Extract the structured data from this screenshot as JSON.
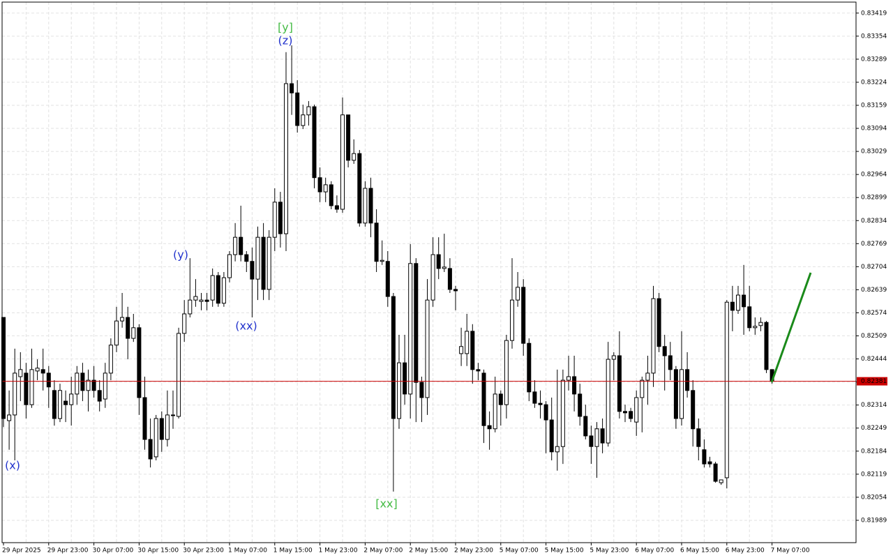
{
  "chart_data": {
    "type": "candlestick",
    "categories": [
      "29 Apr 2025",
      null,
      null,
      null,
      null,
      null,
      null,
      null,
      "29 Apr 23:00",
      null,
      null,
      null,
      null,
      null,
      null,
      null,
      "30 Apr 07:00",
      null,
      null,
      null,
      null,
      null,
      null,
      null,
      "30 Apr 15:00",
      null,
      null,
      null,
      null,
      null,
      null,
      null,
      "30 Apr 23:00",
      null,
      null,
      null,
      null,
      null,
      null,
      null,
      "1 May 07:00",
      null,
      null,
      null,
      null,
      null,
      null,
      null,
      "1 May 15:00",
      null,
      null,
      null,
      null,
      null,
      null,
      null,
      "1 May 23:00",
      null,
      null,
      null,
      null,
      null,
      null,
      null,
      "2 May 07:00",
      null,
      null,
      null,
      null,
      null,
      null,
      null,
      "2 May 15:00",
      null,
      null,
      null,
      null,
      null,
      null,
      null,
      "2 May 23:00",
      null,
      null,
      null,
      null,
      null,
      null,
      null,
      "5 May 07:00",
      null,
      null,
      null,
      null,
      null,
      null,
      null,
      "5 May 15:00",
      null,
      null,
      null,
      null,
      null,
      null,
      null,
      "5 May 23:00",
      null,
      null,
      null,
      null,
      null,
      null,
      null,
      "6 May 07:00",
      null,
      null,
      null,
      null,
      null,
      null,
      null,
      "6 May 15:00",
      null,
      null,
      null,
      null,
      null,
      null,
      null,
      "6 May 23:00",
      null,
      null,
      null,
      null,
      null,
      null,
      null,
      "7 May 07:00"
    ],
    "open": [
      0.82561,
      0.8227,
      0.82286,
      0.82394,
      0.82404,
      0.82315,
      0.8241,
      0.82414,
      0.82404,
      0.82355,
      0.82276,
      0.82325,
      0.82315,
      0.82345,
      0.82404,
      0.82355,
      0.82384,
      0.82355,
      0.82331,
      0.82404,
      0.82483,
      0.82551,
      0.82561,
      0.82502,
      0.82532,
      0.82335,
      0.82217,
      0.82168,
      0.82276,
      0.82217,
      0.82286,
      0.82282,
      0.82516,
      0.82571,
      0.8261,
      0.82606,
      0.8261,
      0.8261,
      0.82679,
      0.82601,
      0.82673,
      0.82738,
      0.82787,
      0.82738,
      0.82719,
      0.82669,
      0.82787,
      0.8264,
      0.82787,
      0.82886,
      0.82797,
      0.8322,
      0.83194,
      0.83102,
      0.83132,
      0.83155,
      0.82955,
      0.82915,
      0.82935,
      0.82876,
      0.82866,
      0.83132,
      0.83004,
      0.83023,
      0.82827,
      0.82925,
      0.82827,
      0.82719,
      0.82719,
      0.8262,
      0.82276,
      0.82433,
      0.82345,
      0.82713,
      0.82378,
      0.82335,
      0.8261,
      0.82738,
      0.82699,
      0.82699,
      0.8264,
      0.82459,
      0.82459,
      0.82522,
      0.82414,
      0.82404,
      0.82256,
      0.82247,
      0.82345,
      0.82315,
      0.82496,
      0.8261,
      0.82646,
      0.82488,
      0.82351,
      0.82319,
      0.82315,
      0.82272,
      0.82182,
      0.82197,
      0.82384,
      0.82394,
      0.82345,
      0.82282,
      0.82227,
      0.82197,
      0.82247,
      0.82207,
      0.82443,
      0.82453,
      0.82296,
      0.82296,
      0.82266,
      0.82335,
      0.82384,
      0.82404,
      0.82614,
      0.82479,
      0.82453,
      0.82414,
      0.82276,
      0.82414,
      0.82355,
      0.82247,
      0.82188,
      0.82154,
      0.82148,
      0.82095,
      0.82109,
      0.82604,
      0.82581,
      0.82624,
      0.82591,
      0.82532,
      0.82538,
      0.82547,
      0.82414
    ],
    "high": [
      0.82561,
      0.82355,
      0.82473,
      0.82463,
      0.82433,
      0.82473,
      0.82443,
      0.82473,
      0.82424,
      0.82384,
      0.82374,
      0.82355,
      0.82394,
      0.82424,
      0.82433,
      0.82414,
      0.82424,
      0.82384,
      0.82433,
      0.82502,
      0.82591,
      0.8263,
      0.82591,
      0.82571,
      0.82542,
      0.82394,
      0.82276,
      0.82286,
      0.82296,
      0.82355,
      0.82355,
      0.82532,
      0.8261,
      0.82728,
      0.82669,
      0.8263,
      0.8263,
      0.82699,
      0.82689,
      0.82689,
      0.82748,
      0.82827,
      0.82876,
      0.82748,
      0.82758,
      0.82817,
      0.82827,
      0.82807,
      0.82925,
      0.82915,
      0.83309,
      0.83328,
      0.8323,
      0.83161,
      0.83171,
      0.83161,
      0.82984,
      0.82955,
      0.82945,
      0.82905,
      0.83181,
      0.83132,
      0.83063,
      0.83033,
      0.82945,
      0.82955,
      0.82866,
      0.82778,
      0.82748,
      0.8263,
      0.82512,
      0.82512,
      0.82768,
      0.82728,
      0.82394,
      0.82669,
      0.82787,
      0.82787,
      0.82797,
      0.82728,
      0.8265,
      0.82532,
      0.82571,
      0.82542,
      0.82433,
      0.82414,
      0.82296,
      0.82394,
      0.82355,
      0.82512,
      0.82728,
      0.82689,
      0.82669,
      0.82502,
      0.82384,
      0.82355,
      0.82325,
      0.82335,
      0.82414,
      0.82414,
      0.82453,
      0.82453,
      0.82374,
      0.82315,
      0.82256,
      0.82266,
      0.82276,
      0.82492,
      0.82463,
      0.82522,
      0.82315,
      0.82306,
      0.82355,
      0.82394,
      0.82453,
      0.8265,
      0.8263,
      0.82512,
      0.82492,
      0.82424,
      0.82522,
      0.82463,
      0.82384,
      0.82276,
      0.82217,
      0.82168,
      0.82154,
      0.82103,
      0.8261,
      0.8265,
      0.8265,
      0.82709,
      0.8265,
      0.82561,
      0.82561,
      0.82551,
      0.82414
    ],
    "low": [
      0.82252,
      0.82188,
      0.82158,
      0.82325,
      0.82276,
      0.82306,
      0.82384,
      0.82355,
      0.82306,
      0.82256,
      0.82266,
      0.82266,
      0.82256,
      0.82315,
      0.82325,
      0.82296,
      0.82335,
      0.82296,
      0.82306,
      0.82384,
      0.82463,
      0.82532,
      0.82443,
      0.82492,
      0.82286,
      0.82188,
      0.82138,
      0.82158,
      0.82182,
      0.82197,
      0.82247,
      0.82276,
      0.82492,
      0.82561,
      0.82591,
      0.82581,
      0.82581,
      0.82591,
      0.82591,
      0.82591,
      0.8266,
      0.82719,
      0.82719,
      0.82689,
      0.82561,
      0.8261,
      0.8261,
      0.8261,
      0.82748,
      0.82758,
      0.82748,
      0.83132,
      0.83082,
      0.83092,
      0.83102,
      0.82925,
      0.82886,
      0.82886,
      0.82866,
      0.82856,
      0.82856,
      0.82984,
      0.82994,
      0.82817,
      0.82817,
      0.82787,
      0.82689,
      0.82709,
      0.82591,
      0.8207,
      0.82247,
      0.82315,
      0.82276,
      0.82266,
      0.82266,
      0.82286,
      0.82591,
      0.82669,
      0.82689,
      0.8263,
      0.82581,
      0.82424,
      0.82424,
      0.82374,
      0.82384,
      0.82207,
      0.82188,
      0.82237,
      0.82256,
      0.82276,
      0.82473,
      0.82591,
      0.82453,
      0.82325,
      0.82306,
      0.82276,
      0.82178,
      0.82158,
      0.82129,
      0.82148,
      0.82355,
      0.82296,
      0.82256,
      0.82217,
      0.82148,
      0.82109,
      0.82178,
      0.82197,
      0.82384,
      0.82276,
      0.82266,
      0.82266,
      0.82227,
      0.82237,
      0.82315,
      0.82365,
      0.82463,
      0.82355,
      0.82384,
      0.82247,
      0.82256,
      0.82335,
      0.82197,
      0.82158,
      0.82138,
      0.82138,
      0.82095,
      0.82089,
      0.82079,
      0.82522,
      0.82571,
      0.82512,
      0.82522,
      0.82512,
      0.82522,
      0.82404,
      0.82374
    ],
    "close": [
      0.82276,
      0.82286,
      0.82404,
      0.82414,
      0.82315,
      0.82414,
      0.82418,
      0.82404,
      0.82365,
      0.82276,
      0.82355,
      0.82315,
      0.82345,
      0.82404,
      0.82355,
      0.82384,
      0.82355,
      0.82325,
      0.82404,
      0.82483,
      0.82551,
      0.82561,
      0.82502,
      0.82532,
      0.82335,
      0.82217,
      0.82162,
      0.82276,
      0.82217,
      0.82286,
      0.82286,
      0.82516,
      0.82571,
      0.8261,
      0.8262,
      0.8261,
      0.82606,
      0.82679,
      0.82601,
      0.82673,
      0.82738,
      0.82787,
      0.82738,
      0.82719,
      0.82669,
      0.82787,
      0.8264,
      0.82787,
      0.82886,
      0.82797,
      0.8322,
      0.83194,
      0.83102,
      0.83132,
      0.83155,
      0.82955,
      0.82915,
      0.82935,
      0.82876,
      0.82866,
      0.83132,
      0.83004,
      0.83023,
      0.82827,
      0.82925,
      0.82827,
      0.82719,
      0.82722,
      0.8262,
      0.82276,
      0.82433,
      0.82345,
      0.82713,
      0.82378,
      0.82335,
      0.8261,
      0.82738,
      0.82699,
      0.82703,
      0.8264,
      0.82636,
      0.82479,
      0.82522,
      0.82414,
      0.8241,
      0.82256,
      0.82247,
      0.82345,
      0.82315,
      0.82496,
      0.8261,
      0.82646,
      0.82488,
      0.82351,
      0.82319,
      0.82315,
      0.82272,
      0.82182,
      0.82197,
      0.82384,
      0.82394,
      0.82345,
      0.82282,
      0.82227,
      0.82197,
      0.82247,
      0.82207,
      0.82443,
      0.82453,
      0.82296,
      0.82292,
      0.82276,
      0.82335,
      0.82384,
      0.82404,
      0.82614,
      0.82479,
      0.82453,
      0.82414,
      0.82276,
      0.82414,
      0.82355,
      0.82247,
      0.82197,
      0.82148,
      0.82148,
      0.82099,
      0.82103,
      0.82604,
      0.82581,
      0.82624,
      0.82591,
      0.82532,
      0.82536,
      0.82547,
      0.82414,
      0.82381
    ],
    "up_color": "#ffffff",
    "down_color": "#000000",
    "wick_color": "#000000",
    "ylim": [
      0.81926,
      0.8345
    ],
    "yticks": [
      0.83419,
      0.83354,
      0.83289,
      0.83224,
      0.83159,
      0.83094,
      0.83029,
      0.82964,
      0.82899,
      0.82834,
      0.82769,
      0.82704,
      0.82639,
      0.82574,
      0.82509,
      0.82444,
      0.82379,
      0.82314,
      0.82249,
      0.82184,
      0.82119,
      0.82054,
      0.81989
    ],
    "grid": true,
    "current_price": 0.82381,
    "current_price_color": "#cc0000",
    "annotations": [
      {
        "text": "[y]",
        "color": "#44bb44"
      },
      {
        "text": "(z)",
        "color": "#2233cc"
      },
      {
        "text": "(y)",
        "color": "#2233cc"
      },
      {
        "text": "(xx)",
        "color": "#2233cc"
      },
      {
        "text": "(x)",
        "color": "#2233cc"
      },
      {
        "text": "[xx]",
        "color": "#44bb44"
      }
    ]
  }
}
